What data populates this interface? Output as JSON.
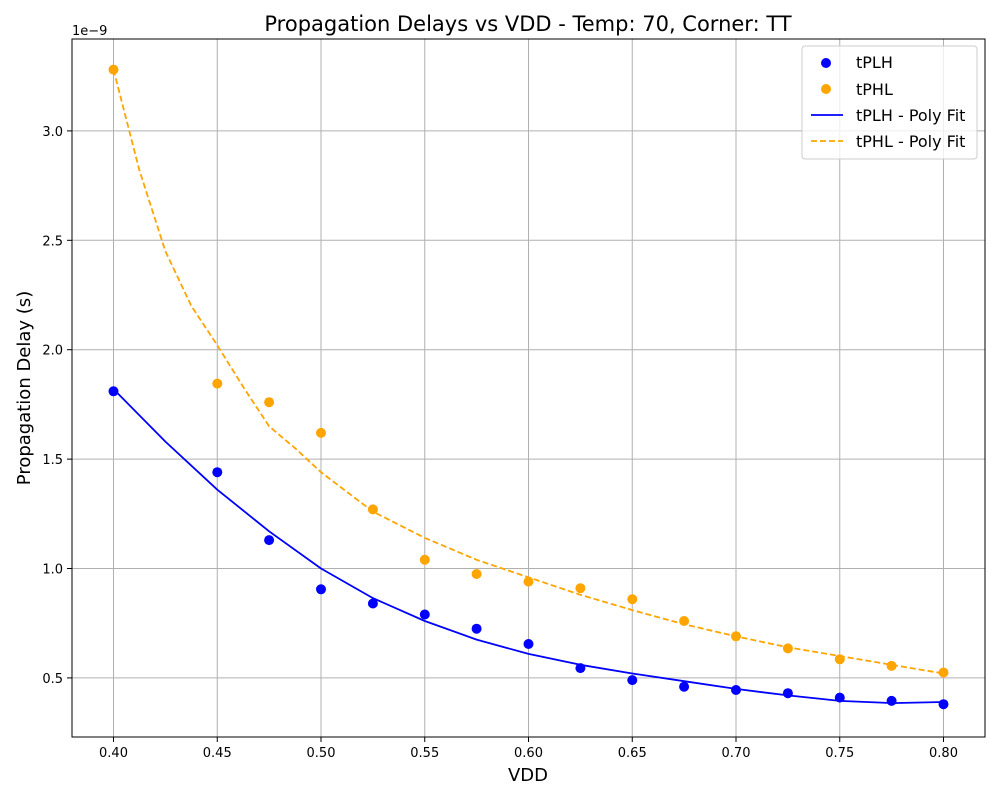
{
  "chart_data": {
    "type": "scatter",
    "title": "Propagation Delays vs VDD - Temp: 70, Corner: TT",
    "xlabel": "VDD",
    "ylabel": "Propagation Delay (s)",
    "y_offset_label": "1e−9",
    "y_scale": 1e-09,
    "xlim": [
      0.38,
      0.82
    ],
    "ylim": [
      0.23,
      3.42
    ],
    "x_ticks": [
      0.4,
      0.45,
      0.5,
      0.55,
      0.6,
      0.65,
      0.7,
      0.75,
      0.8
    ],
    "x_tick_labels": [
      "0.40",
      "0.45",
      "0.50",
      "0.55",
      "0.60",
      "0.65",
      "0.70",
      "0.75",
      "0.80"
    ],
    "y_ticks": [
      0.5,
      1.0,
      1.5,
      2.0,
      2.5,
      3.0
    ],
    "y_tick_labels": [
      "0.5",
      "1.0",
      "1.5",
      "2.0",
      "2.5",
      "3.0"
    ],
    "grid": true,
    "legend_position": "top-right",
    "x": [
      0.4,
      0.45,
      0.475,
      0.5,
      0.525,
      0.55,
      0.575,
      0.6,
      0.625,
      0.65,
      0.675,
      0.7,
      0.725,
      0.75,
      0.775,
      0.8
    ],
    "series": [
      {
        "name": "tPLH",
        "kind": "scatter",
        "color": "#0000ff",
        "values": [
          1.81,
          1.44,
          1.13,
          0.905,
          0.84,
          0.79,
          0.725,
          0.655,
          0.545,
          0.49,
          0.46,
          0.445,
          0.43,
          0.41,
          0.395,
          0.38
        ]
      },
      {
        "name": "tPHL",
        "kind": "scatter",
        "color": "#ffa500",
        "values": [
          3.28,
          1.845,
          1.76,
          1.62,
          1.27,
          1.04,
          0.975,
          0.94,
          0.91,
          0.86,
          0.76,
          0.69,
          0.635,
          0.585,
          0.555,
          0.525
        ]
      },
      {
        "name": "tPLH - Poly Fit",
        "kind": "line",
        "style": "solid",
        "color": "#0000ff",
        "x": [
          0.4,
          0.425,
          0.45,
          0.475,
          0.5,
          0.525,
          0.55,
          0.575,
          0.6,
          0.625,
          0.65,
          0.675,
          0.7,
          0.725,
          0.75,
          0.775,
          0.8
        ],
        "values": [
          1.82,
          1.58,
          1.36,
          1.17,
          1.0,
          0.865,
          0.76,
          0.675,
          0.61,
          0.56,
          0.52,
          0.485,
          0.45,
          0.42,
          0.395,
          0.385,
          0.39
        ]
      },
      {
        "name": "tPHL - Poly Fit",
        "kind": "line",
        "style": "dashed",
        "color": "#ffa500",
        "x": [
          0.4,
          0.4125,
          0.425,
          0.4375,
          0.45,
          0.4625,
          0.475,
          0.4875,
          0.5,
          0.5125,
          0.525,
          0.55,
          0.575,
          0.6,
          0.625,
          0.65,
          0.675,
          0.7,
          0.725,
          0.75,
          0.775,
          0.8
        ],
        "values": [
          3.28,
          2.82,
          2.45,
          2.2,
          2.02,
          1.83,
          1.65,
          1.55,
          1.44,
          1.35,
          1.26,
          1.14,
          1.04,
          0.96,
          0.88,
          0.81,
          0.745,
          0.69,
          0.64,
          0.6,
          0.56,
          0.52
        ]
      }
    ]
  }
}
